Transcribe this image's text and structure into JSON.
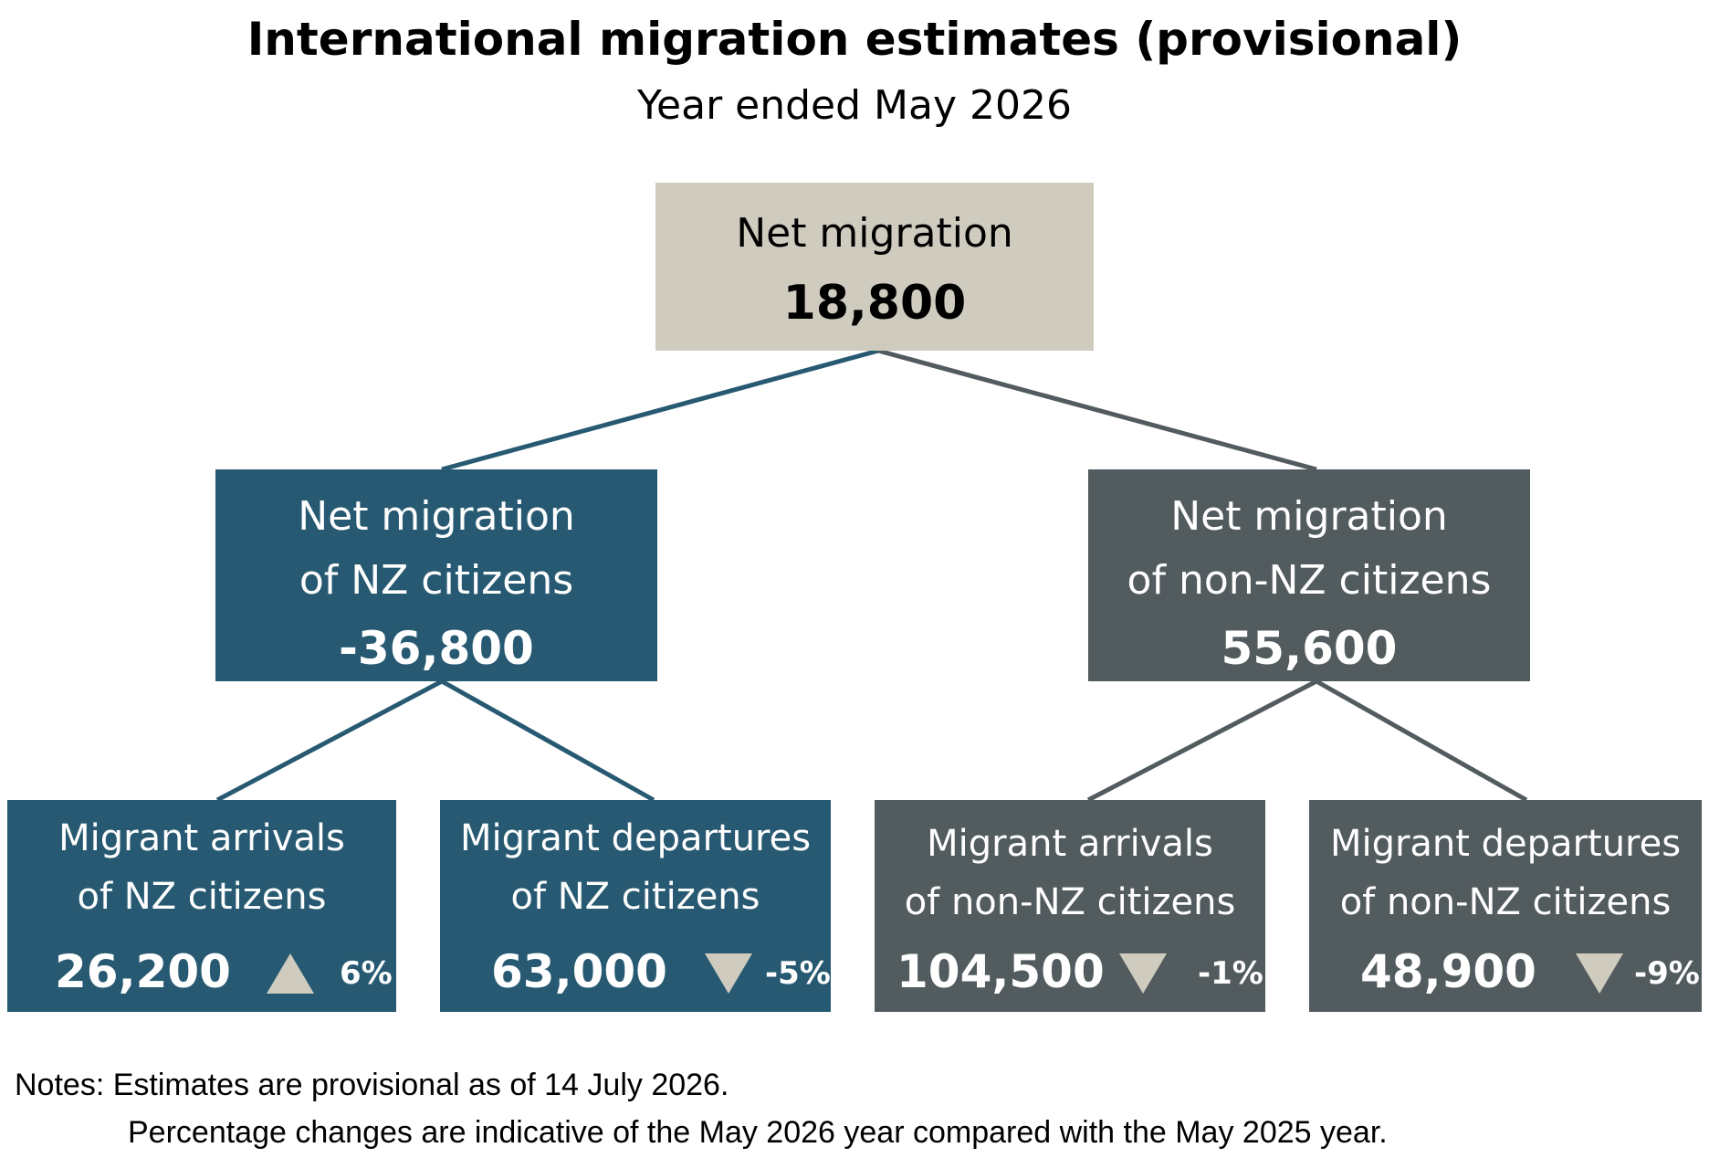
{
  "title": "International migration estimates (provisional)",
  "subtitle": "Year ended May 2026",
  "colors": {
    "top_box": "#cfccbf",
    "nz_box": "#275a72",
    "non_nz_box": "#525b5e",
    "indicator": "#cfccbf"
  },
  "top": {
    "line1": "Net migration",
    "value": "18,800"
  },
  "nz": {
    "line1": "Net migration",
    "line2": "of NZ citizens",
    "value": "-36,800"
  },
  "non_nz": {
    "line1": "Net migration",
    "line2": "of non-NZ citizens",
    "value": "55,600"
  },
  "leaves": [
    {
      "line1": "Migrant arrivals",
      "line2": "of NZ citizens",
      "value": "26,200",
      "direction": "up",
      "indicator_icon": "triangle-up-icon",
      "change": "6%"
    },
    {
      "line1": "Migrant departures",
      "line2": "of NZ citizens",
      "value": "63,000",
      "direction": "down",
      "indicator_icon": "triangle-down-icon",
      "change": "-5%"
    },
    {
      "line1": "Migrant arrivals",
      "line2": "of non-NZ citizens",
      "value": "104,500",
      "direction": "down",
      "indicator_icon": "triangle-down-icon",
      "change": "-1%"
    },
    {
      "line1": "Migrant departures",
      "line2": "of non-NZ citizens",
      "value": "48,900",
      "direction": "down",
      "indicator_icon": "triangle-down-icon",
      "change": "-9%"
    }
  ],
  "notes": {
    "line1": "Notes: Estimates are provisional as of 14 July 2026.",
    "line2": "Percentage changes are indicative of the May 2026 year compared with the May 2025 year."
  }
}
